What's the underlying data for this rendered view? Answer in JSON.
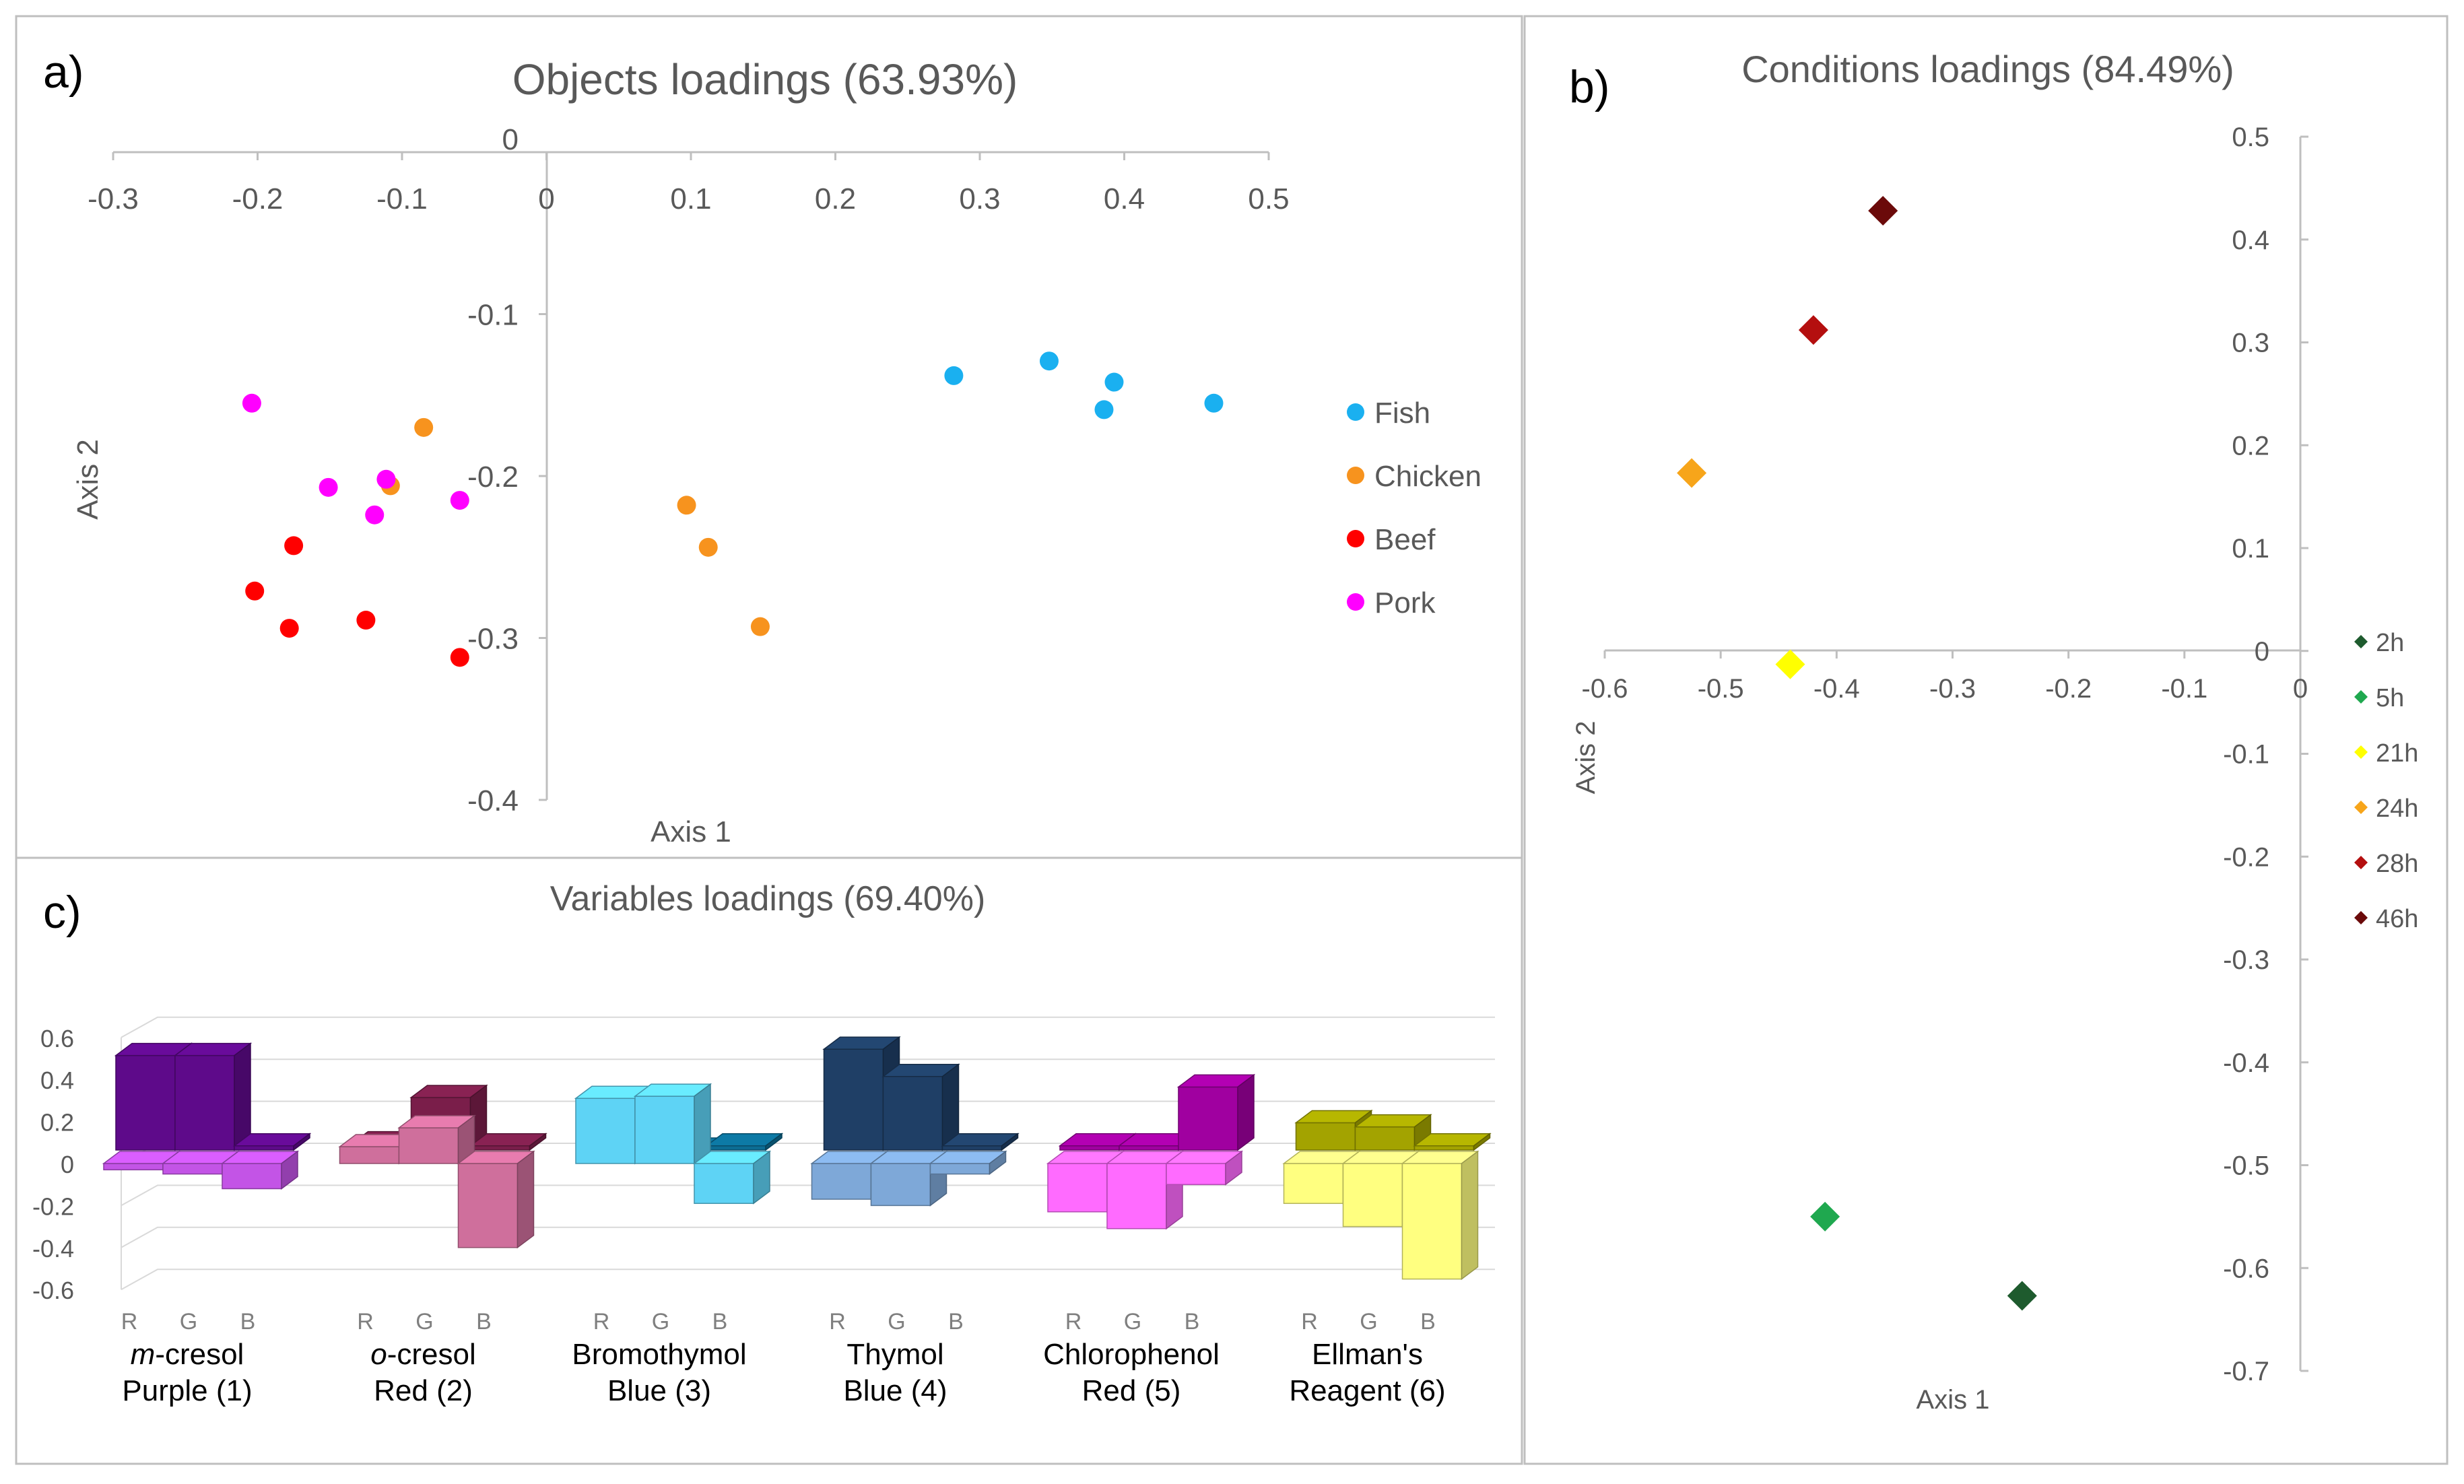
{
  "panel_labels": {
    "a": "a)",
    "b": "b)",
    "c": "c)"
  },
  "chart_data": [
    {
      "id": "objects",
      "type": "scatter",
      "title": "Objects loadings (63.93%)",
      "xlabel": "Axis 1",
      "ylabel": "Axis 2",
      "xlim": [
        -0.3,
        0.5
      ],
      "ylim": [
        -0.4,
        0
      ],
      "x_ticks": [
        "-0.3",
        "-0.2",
        "-0.1",
        "0",
        "0.1",
        "0.2",
        "0.3",
        "0.4",
        "0.5"
      ],
      "y_ticks": [
        "0",
        "-0.1",
        "-0.2",
        "-0.3",
        "-0.4"
      ],
      "series": [
        {
          "name": "Fish",
          "color": "#1ab0f0",
          "points": [
            [
              0.282,
              -0.138
            ],
            [
              0.348,
              -0.129
            ],
            [
              0.393,
              -0.142
            ],
            [
              0.386,
              -0.159
            ],
            [
              0.462,
              -0.155
            ]
          ]
        },
        {
          "name": "Chicken",
          "color": "#f7931e",
          "points": [
            [
              -0.085,
              -0.17
            ],
            [
              -0.108,
              -0.206
            ],
            [
              0.097,
              -0.218
            ],
            [
              0.112,
              -0.244
            ],
            [
              0.148,
              -0.293
            ]
          ]
        },
        {
          "name": "Beef",
          "color": "#ff0000",
          "points": [
            [
              -0.175,
              -0.243
            ],
            [
              -0.202,
              -0.271
            ],
            [
              -0.178,
              -0.294
            ],
            [
              -0.125,
              -0.289
            ],
            [
              -0.06,
              -0.312
            ]
          ]
        },
        {
          "name": "Pork",
          "color": "#ff00ff",
          "points": [
            [
              -0.204,
              -0.155
            ],
            [
              -0.151,
              -0.207
            ],
            [
              -0.111,
              -0.202
            ],
            [
              -0.119,
              -0.224
            ],
            [
              -0.06,
              -0.215
            ]
          ]
        }
      ]
    },
    {
      "id": "conditions",
      "type": "scatter",
      "title": "Conditions loadings (84.49%)",
      "xlabel": "Axis 1",
      "ylabel": "Axis 2",
      "xlim": [
        -0.6,
        0
      ],
      "ylim": [
        -0.7,
        0.5
      ],
      "x_ticks": [
        "-0.6",
        "-0.5",
        "-0.4",
        "-0.3",
        "-0.2",
        "-0.1",
        "0"
      ],
      "y_ticks": [
        "0.5",
        "0.4",
        "0.3",
        "0.2",
        "0.1",
        "0",
        "-0.1",
        "-0.2",
        "-0.3",
        "-0.4",
        "-0.5",
        "-0.6",
        "-0.7"
      ],
      "series": [
        {
          "name": "2h",
          "color": "#1e5b2e",
          "points": [
            [
              -0.24,
              -0.627
            ]
          ]
        },
        {
          "name": "5h",
          "color": "#1fa84f",
          "points": [
            [
              -0.41,
              -0.55
            ]
          ]
        },
        {
          "name": "21h",
          "color": "#ffff00",
          "points": [
            [
              -0.44,
              -0.013
            ]
          ]
        },
        {
          "name": "24h",
          "color": "#f7a51a",
          "points": [
            [
              -0.525,
              0.173
            ]
          ]
        },
        {
          "name": "28h",
          "color": "#b40f0f",
          "points": [
            [
              -0.42,
              0.312
            ]
          ]
        },
        {
          "name": "46h",
          "color": "#6b0a0a",
          "points": [
            [
              -0.36,
              0.428
            ]
          ]
        }
      ]
    },
    {
      "id": "variables",
      "type": "bar",
      "title": "Variables loadings (69.40%)",
      "ylim": [
        -0.6,
        0.6
      ],
      "y_ticks": [
        "0.6",
        "0.4",
        "0.2",
        "0",
        "-0.2",
        "-0.4",
        "-0.6"
      ],
      "channel_labels": [
        "R",
        "G",
        "B"
      ],
      "groups": [
        {
          "label_italic": "m",
          "label_rest": "-cresol",
          "label2": "Purple (1)",
          "front": [
            -0.03,
            -0.05,
            -0.12
          ],
          "back": [
            0.45,
            0.45,
            0.02
          ],
          "front_color": "#c354e6",
          "back_color": "#5e0a8a"
        },
        {
          "label_italic": "o",
          "label_rest": "-cresol",
          "label2": "Red (2)",
          "front": [
            0.08,
            0.17,
            -0.4
          ],
          "back": [
            0.03,
            0.25,
            0.02
          ],
          "front_color": "#cf6f9c",
          "back_color": "#7a1e4a"
        },
        {
          "label_italic": "",
          "label_rest": "Bromothymol",
          "label2": "Blue (3)",
          "front": [
            0.31,
            0.32,
            -0.19
          ],
          "back": [
            0.0,
            0.0,
            0.02
          ],
          "front_color": "#5ed3f5",
          "back_color": "#0c6d94"
        },
        {
          "label_italic": "",
          "label_rest": "Thymol",
          "label2": "Blue (4)",
          "front": [
            -0.17,
            -0.2,
            -0.05
          ],
          "back": [
            0.48,
            0.35,
            0.02
          ],
          "front_color": "#7ea8d8",
          "back_color": "#1f3f66"
        },
        {
          "label_italic": "",
          "label_rest": "Chlorophenol",
          "label2": "Red (5)",
          "front": [
            -0.23,
            -0.31,
            -0.1
          ],
          "back": [
            0.02,
            0.02,
            0.3
          ],
          "front_color": "#ff6bff",
          "back_color": "#a000a0"
        },
        {
          "label_italic": "",
          "label_rest": "Ellman's",
          "label2": "Reagent (6)",
          "front": [
            -0.19,
            -0.3,
            -0.55
          ],
          "back": [
            0.13,
            0.11,
            0.02
          ],
          "front_color": "#ffff80",
          "back_color": "#a3a300"
        }
      ]
    }
  ]
}
